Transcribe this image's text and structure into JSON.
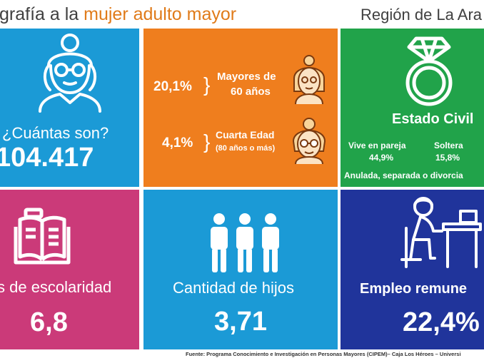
{
  "header": {
    "title_prefix": "grafía a la ",
    "title_highlight": "mujer adulto mayor",
    "region": "Región de La Ara"
  },
  "colors": {
    "blue": "#1b9ad6",
    "orange": "#ef7e1e",
    "green": "#21a34a",
    "magenta": "#cb3a79",
    "navy": "#20349b",
    "highlight_text": "#e07b1a"
  },
  "tile_count": {
    "icon": "elderly-woman-icon",
    "label": "¿Cuántas son?",
    "value": "104.417"
  },
  "tile_age": {
    "row1": {
      "value": "20,1%",
      "brace": "}",
      "label_line1": "Mayores de",
      "label_line2": "60 años",
      "icon": "elderly-woman-face-icon"
    },
    "row2": {
      "value": "4,1%",
      "brace": "}",
      "label_line1": "Cuarta Edad",
      "label_line2": "(80 años o más)",
      "icon": "elderly-woman-glasses-icon"
    }
  },
  "tile_civil": {
    "icon": "ring-icon",
    "title": "Estado Civil",
    "col1_label": "Vive en pareja",
    "col1_value": "44,9%",
    "col2_label": "Soltera",
    "col2_value": "15,8%",
    "note": "Anulada, separada o divorcia"
  },
  "tile_school": {
    "icon": "book-icon",
    "label": "s de escolaridad",
    "value": "6,8"
  },
  "tile_children": {
    "icon": "people-icon",
    "label": "Cantidad de hijos",
    "value": "3,71"
  },
  "tile_work": {
    "icon": "woman-at-desk-icon",
    "label": "Empleo remune",
    "value": "22,4%"
  },
  "footer": {
    "source": "Fuente: Programa Conocimiento e Investigación  en Personas Mayores (CIPEM)–  Caja Los Héroes – Universi"
  }
}
